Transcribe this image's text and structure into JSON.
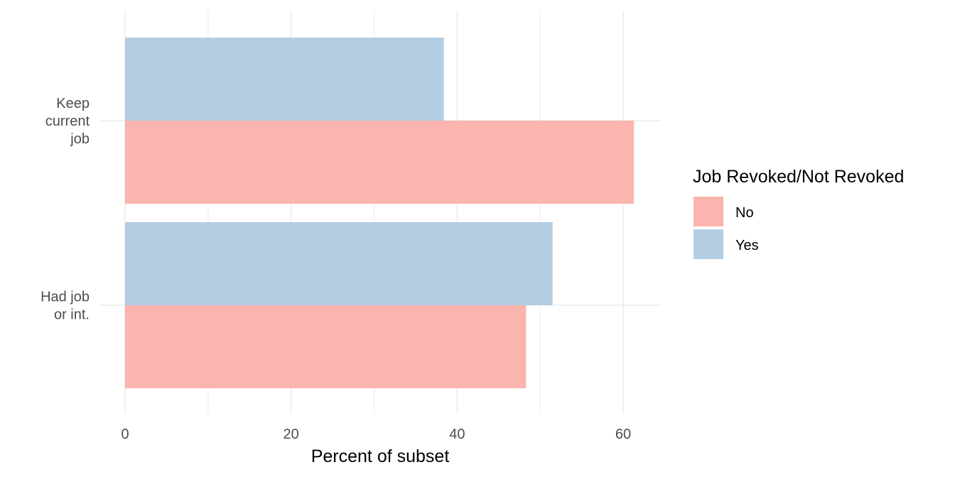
{
  "chart_data": {
    "type": "bar",
    "orientation": "horizontal",
    "categories": [
      [
        "Keep",
        "current",
        "job"
      ],
      [
        "Had job",
        "or int."
      ]
    ],
    "series": [
      {
        "name": "No",
        "color": "#FBB4AE",
        "values": [
          61.3,
          48.3
        ]
      },
      {
        "name": "Yes",
        "color": "#B3CDE3",
        "values": [
          38.4,
          51.5
        ]
      }
    ],
    "xlabel": "Percent of subset",
    "ylabel": "",
    "xlim": [
      0,
      64.5
    ],
    "xticks": [
      0,
      20,
      40,
      60
    ],
    "grid": true,
    "legend": {
      "title": "Job Revoked/Not Revoked",
      "placement": "right"
    }
  }
}
